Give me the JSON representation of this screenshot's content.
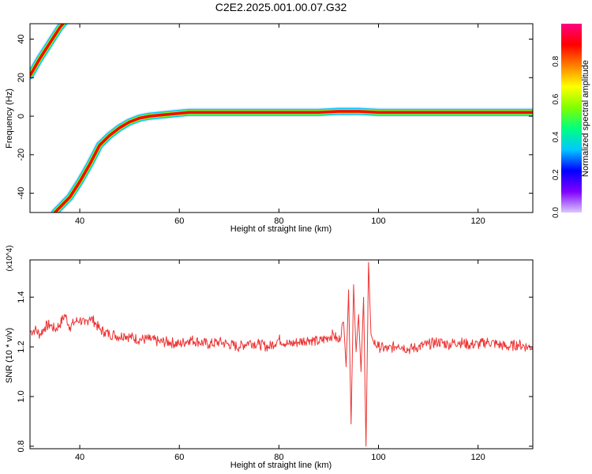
{
  "chart_data": [
    {
      "type": "heatmap",
      "title": "C2E2.2025.001.00.07.G32",
      "xlabel": "Height of straight line (km)",
      "ylabel": "Frequency (Hz)",
      "xlim": [
        30,
        131
      ],
      "ylim": [
        -50,
        48
      ],
      "x_ticks": [
        40,
        60,
        80,
        100,
        120
      ],
      "y_ticks": [
        40,
        20,
        0,
        -20,
        -40
      ],
      "colorbar": {
        "label": "Normalized spectral amplitude",
        "range": [
          0,
          1
        ],
        "ticks": [
          "0.0",
          "0.2",
          "0.4",
          "0.6",
          "0.8"
        ],
        "colormap": [
          "#d8c8ff",
          "#8000ff",
          "#0000ff",
          "#00c8ff",
          "#00ff80",
          "#80ff00",
          "#ffff00",
          "#ff8000",
          "#ff0000",
          "#ff0080"
        ]
      },
      "series": [
        {
          "x": [
            30,
            32,
            34,
            36,
            37
          ],
          "y": [
            21,
            30,
            38,
            46,
            49
          ]
        },
        {
          "x": [
            35,
            38,
            40,
            42,
            44,
            46,
            48,
            50,
            52,
            54,
            56,
            58,
            60,
            62,
            70,
            80,
            88,
            92,
            96,
            100,
            110,
            120,
            131
          ],
          "y": [
            -50,
            -42,
            -34,
            -25,
            -15,
            -10,
            -6,
            -3,
            -1,
            0,
            0.5,
            1,
            1.5,
            2,
            2,
            2,
            2,
            2.5,
            2.5,
            2,
            2,
            2,
            2
          ]
        }
      ],
      "grid": false
    },
    {
      "type": "line",
      "xlabel": "Height of straight line (km)",
      "ylabel": "SNR (10 * v/v)",
      "y_multiplier": "(x10^4)",
      "xlim": [
        30,
        131
      ],
      "ylim": [
        0.79,
        1.55
      ],
      "x_ticks": [
        40,
        60,
        80,
        100,
        120
      ],
      "y_ticks": [
        1.4,
        1.2,
        1.0,
        0.8
      ],
      "color": "#ee3333",
      "series": [
        {
          "x": [
            30,
            31,
            32,
            33,
            34,
            35,
            36,
            37,
            38,
            39,
            40,
            41,
            42,
            43,
            44,
            45,
            46,
            47,
            48,
            49,
            50,
            52,
            54,
            56,
            58,
            60,
            62,
            64,
            66,
            68,
            70,
            72,
            74,
            76,
            78,
            80,
            82,
            84,
            86,
            88,
            90,
            91,
            92,
            93,
            93.5,
            94,
            94.5,
            95,
            95.5,
            96,
            96.5,
            97,
            97.5,
            98,
            98.5,
            99,
            100,
            102,
            104,
            106,
            108,
            110,
            112,
            114,
            116,
            118,
            120,
            122,
            124,
            126,
            128,
            130,
            131
          ],
          "y": [
            1.26,
            1.27,
            1.25,
            1.28,
            1.29,
            1.27,
            1.29,
            1.33,
            1.28,
            1.3,
            1.31,
            1.29,
            1.32,
            1.3,
            1.27,
            1.26,
            1.25,
            1.25,
            1.24,
            1.25,
            1.24,
            1.23,
            1.23,
            1.22,
            1.22,
            1.21,
            1.23,
            1.22,
            1.21,
            1.22,
            1.21,
            1.2,
            1.22,
            1.21,
            1.2,
            1.23,
            1.21,
            1.22,
            1.23,
            1.22,
            1.24,
            1.25,
            1.22,
            1.3,
            1.12,
            1.43,
            0.89,
            1.45,
            1.18,
            1.33,
            1.1,
            1.4,
            0.8,
            1.54,
            1.25,
            1.22,
            1.2,
            1.19,
            1.21,
            1.19,
            1.2,
            1.21,
            1.22,
            1.21,
            1.22,
            1.21,
            1.21,
            1.22,
            1.21,
            1.2,
            1.21,
            1.2,
            1.2
          ]
        }
      ],
      "grid": false
    }
  ]
}
